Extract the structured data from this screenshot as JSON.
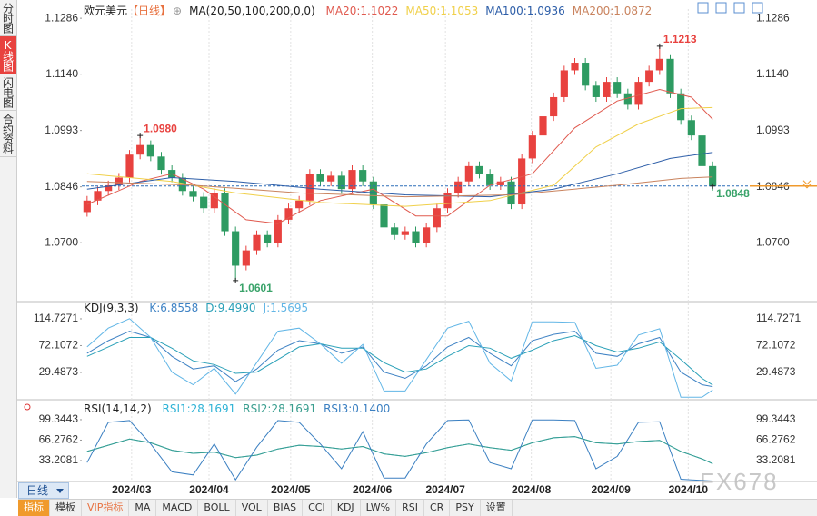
{
  "sidebar": {
    "tabs": [
      "分时图",
      "K线图",
      "闪电图",
      "合约资料"
    ],
    "active": 1
  },
  "chart_data": [
    {
      "type": "candlestick",
      "title": "欧元美元",
      "period": "【日线】",
      "indicator": "MA(20,50,100,200,0,0)",
      "open": [
        1.078,
        1.081,
        1.0835,
        1.085,
        1.087,
        1.093,
        1.0955,
        1.0925,
        1.089,
        1.087,
        1.0835,
        1.082,
        1.079,
        1.083,
        1.073,
        1.064,
        1.068,
        1.072,
        1.07,
        1.076,
        1.079,
        1.081,
        1.088,
        1.086,
        1.0875,
        1.084,
        1.089,
        1.086,
        1.08,
        1.074,
        1.072,
        1.073,
        1.07,
        1.074,
        1.079,
        1.083,
        1.086,
        1.09,
        1.088,
        1.085,
        1.086,
        1.08,
        1.092,
        1.098,
        1.103,
        1.108,
        1.115,
        1.117,
        1.111,
        1.108,
        1.112,
        1.109,
        1.106,
        1.112,
        1.115,
        1.118,
        1.109,
        1.102,
        1.098,
        1.09
      ],
      "high": [
        1.0822,
        1.0847,
        1.0862,
        1.0882,
        1.0942,
        1.098,
        1.0967,
        1.0937,
        1.0902,
        1.0882,
        1.0847,
        1.0832,
        1.0842,
        1.0842,
        1.0742,
        1.0692,
        1.0732,
        1.0732,
        1.0772,
        1.0802,
        1.0822,
        1.0892,
        1.0892,
        1.0887,
        1.0887,
        1.0902,
        1.0902,
        1.0872,
        1.0812,
        1.0752,
        1.0742,
        1.0742,
        1.0752,
        1.0802,
        1.0842,
        1.0872,
        1.0912,
        1.0912,
        1.0892,
        1.0872,
        1.0872,
        1.0932,
        1.0992,
        1.1042,
        1.1092,
        1.1162,
        1.1182,
        1.1182,
        1.1122,
        1.1132,
        1.1132,
        1.1102,
        1.1132,
        1.1162,
        1.1213,
        1.1192,
        1.1102,
        1.1032,
        1.0992,
        1.0912
      ],
      "low": [
        1.0768,
        1.0798,
        1.0823,
        1.0838,
        1.0858,
        1.0918,
        1.0913,
        1.0878,
        1.0858,
        1.0823,
        1.0808,
        1.0778,
        1.0778,
        1.0718,
        1.0601,
        1.0628,
        1.0668,
        1.0688,
        1.0688,
        1.0748,
        1.0778,
        1.0798,
        1.0848,
        1.0848,
        1.0828,
        1.0828,
        1.0848,
        1.0788,
        1.0728,
        1.0708,
        1.0708,
        1.0688,
        1.0688,
        1.0728,
        1.0778,
        1.0818,
        1.0848,
        1.0868,
        1.0838,
        1.0838,
        1.0788,
        1.0788,
        1.0908,
        1.0968,
        1.1018,
        1.1068,
        1.1138,
        1.1098,
        1.1068,
        1.1068,
        1.1078,
        1.1048,
        1.1048,
        1.1108,
        1.1138,
        1.1078,
        1.1008,
        1.0968,
        1.0888,
        1.0836
      ],
      "close": [
        1.081,
        1.0835,
        1.085,
        1.087,
        1.093,
        1.0955,
        1.0925,
        1.089,
        1.087,
        1.0835,
        1.082,
        1.079,
        1.083,
        1.073,
        1.064,
        1.068,
        1.072,
        1.07,
        1.076,
        1.079,
        1.081,
        1.088,
        1.086,
        1.0875,
        1.084,
        1.089,
        1.086,
        1.08,
        1.074,
        1.072,
        1.073,
        1.07,
        1.074,
        1.079,
        1.083,
        1.086,
        1.09,
        1.088,
        1.085,
        1.086,
        1.08,
        1.092,
        1.098,
        1.103,
        1.108,
        1.115,
        1.117,
        1.111,
        1.108,
        1.112,
        1.109,
        1.106,
        1.112,
        1.115,
        1.118,
        1.109,
        1.102,
        1.098,
        1.09,
        1.0848
      ],
      "up_color": "#e8423f",
      "down_color": "#2e9b62",
      "series": [
        {
          "name": "MA20:1.1022",
          "color": "#e05a4f",
          "x": [
            0,
            5,
            8,
            11,
            15,
            18,
            22,
            27,
            31,
            34,
            38,
            42,
            46,
            50,
            54,
            57,
            59
          ],
          "values": [
            1.08,
            1.086,
            1.088,
            1.084,
            1.076,
            1.075,
            1.081,
            1.084,
            1.077,
            1.077,
            1.085,
            1.088,
            1.1,
            1.107,
            1.11,
            1.108,
            1.1022
          ]
        },
        {
          "name": "MA50:1.1053",
          "color": "#f0d04a",
          "x": [
            0,
            8,
            14,
            22,
            30,
            38,
            44,
            48,
            52,
            56,
            59
          ],
          "values": [
            1.088,
            1.086,
            1.083,
            1.0805,
            1.0795,
            1.081,
            1.085,
            1.095,
            1.101,
            1.105,
            1.1053
          ]
        },
        {
          "name": "MA100:1.0936",
          "color": "#2d5ea8",
          "x": [
            0,
            8,
            14,
            22,
            30,
            38,
            44,
            50,
            55,
            59
          ],
          "values": [
            1.084,
            1.087,
            1.086,
            1.084,
            1.0825,
            1.082,
            1.084,
            1.088,
            1.092,
            1.0936
          ]
        },
        {
          "name": "MA200:1.0872",
          "color": "#c9835e",
          "x": [
            0,
            10,
            20,
            30,
            40,
            50,
            56,
            59
          ],
          "values": [
            1.086,
            1.085,
            1.083,
            1.082,
            1.0825,
            1.085,
            1.0868,
            1.0872
          ]
        }
      ],
      "xlim": [
        -0.5,
        62.5
      ],
      "ylim": [
        1.0551,
        1.131
      ],
      "yticks": [
        1.1286,
        {
          "value": 1.114,
          "label": "1.1140"
        },
        1.0993,
        1.0846,
        {
          "value": 1.07,
          "label": "1.0700"
        }
      ],
      "xticks": [
        {
          "value": 4.2,
          "label": "2024/03"
        },
        {
          "value": 11.5,
          "label": "2024/04"
        },
        {
          "value": 19.2,
          "label": "2024/05"
        },
        {
          "value": 26.9,
          "label": "2024/06"
        },
        {
          "value": 33.8,
          "label": "2024/07"
        },
        {
          "value": 41.9,
          "label": "2024/08"
        },
        {
          "value": 49.4,
          "label": "2024/09"
        },
        {
          "value": 56.7,
          "label": "2024/10"
        }
      ],
      "annotations": [
        {
          "index": 5,
          "value": 1.098,
          "label": "1.0980",
          "color": "#e8423f"
        },
        {
          "index": 14,
          "value": 1.0601,
          "label": "1.0601",
          "color": "#3aa36a"
        },
        {
          "index": 54,
          "value": 1.1213,
          "label": "1.1213",
          "color": "#e8423f"
        },
        {
          "index": 59,
          "value": 1.0848,
          "label": "1.0848",
          "color": "#3aa36a"
        }
      ]
    },
    {
      "type": "line",
      "title": "KDJ(9,3,3)",
      "x": [
        0,
        2,
        4,
        6,
        8,
        10,
        12,
        14,
        16,
        18,
        20,
        22,
        24,
        26,
        28,
        30,
        32,
        34,
        36,
        38,
        40,
        42,
        44,
        46,
        48,
        50,
        52,
        54,
        56,
        58,
        59
      ],
      "series": [
        {
          "name": "K:6.8558",
          "color": "#3e82c4",
          "values": [
            60,
            80,
            95,
            85,
            55,
            35,
            40,
            15,
            35,
            65,
            80,
            75,
            60,
            70,
            30,
            20,
            40,
            70,
            85,
            60,
            40,
            80,
            90,
            95,
            60,
            55,
            75,
            85,
            30,
            10,
            6.8558
          ]
        },
        {
          "name": "D:9.4990",
          "color": "#2aa0b8",
          "values": [
            55,
            70,
            85,
            85,
            68,
            48,
            42,
            28,
            30,
            50,
            70,
            75,
            68,
            68,
            45,
            30,
            35,
            55,
            72,
            68,
            52,
            65,
            80,
            88,
            72,
            62,
            68,
            78,
            50,
            20,
            9.499
          ]
        },
        {
          "name": "J:1.5695",
          "color": "#62b6e6",
          "values": [
            70,
            100,
            115,
            85,
            30,
            10,
            36,
            -5,
            45,
            95,
            100,
            75,
            44,
            74,
            0,
            0,
            50,
            100,
            111,
            44,
            16,
            110,
            110,
            109,
            36,
            41,
            89,
            99,
            -10,
            -10,
            1.5695
          ]
        }
      ],
      "xlim": [
        -0.5,
        62.5
      ],
      "ylim": [
        -11,
        137.8
      ],
      "yticks": [
        114.7271,
        72.1072,
        29.4873
      ]
    },
    {
      "type": "line",
      "title": "RSI(14,14,2)",
      "x": [
        0,
        2,
        4,
        6,
        8,
        10,
        12,
        14,
        16,
        18,
        20,
        22,
        24,
        26,
        28,
        30,
        32,
        34,
        36,
        38,
        40,
        42,
        44,
        46,
        48,
        50,
        52,
        54,
        56,
        58,
        59
      ],
      "series": [
        {
          "name": "RSI1:28.1691",
          "color": "#2fb3d6",
          "values": [
            48,
            58,
            68,
            62,
            50,
            45,
            47,
            38,
            42,
            52,
            58,
            56,
            52,
            56,
            44,
            40,
            46,
            54,
            60,
            54,
            50,
            62,
            70,
            72,
            62,
            60,
            64,
            66,
            48,
            36,
            28.1691
          ]
        },
        {
          "name": "RSI2:28.1691",
          "color": "#3a9e8f",
          "values": [
            48,
            58,
            68,
            62,
            50,
            45,
            47,
            38,
            42,
            52,
            58,
            56,
            52,
            56,
            44,
            40,
            46,
            54,
            60,
            54,
            50,
            62,
            70,
            72,
            62,
            60,
            64,
            66,
            48,
            36,
            28.1691
          ]
        },
        {
          "name": "RSI3:0.1400",
          "color": "#3a7fc1",
          "values": [
            30,
            95,
            98,
            60,
            15,
            10,
            60,
            2,
            55,
            98,
            95,
            60,
            20,
            80,
            5,
            5,
            60,
            98,
            99,
            30,
            20,
            99,
            99,
            98,
            20,
            40,
            95,
            96,
            3,
            1,
            0.14
          ]
        }
      ],
      "xlim": [
        -0.5,
        62.5
      ],
      "ylim": [
        -0.6,
        127.2
      ],
      "yticks": [
        99.3443,
        66.2762,
        33.2081
      ]
    }
  ],
  "toolbar": {
    "period": "日线",
    "items": [
      "指标",
      "模板",
      "VIP指标",
      "MA",
      "MACD",
      "BOLL",
      "VOL",
      "BIAS",
      "CCI",
      "KDJ",
      "LW%",
      "RSI",
      "CR",
      "PSY",
      "设置"
    ],
    "active": 0
  },
  "watermark": "FX678"
}
